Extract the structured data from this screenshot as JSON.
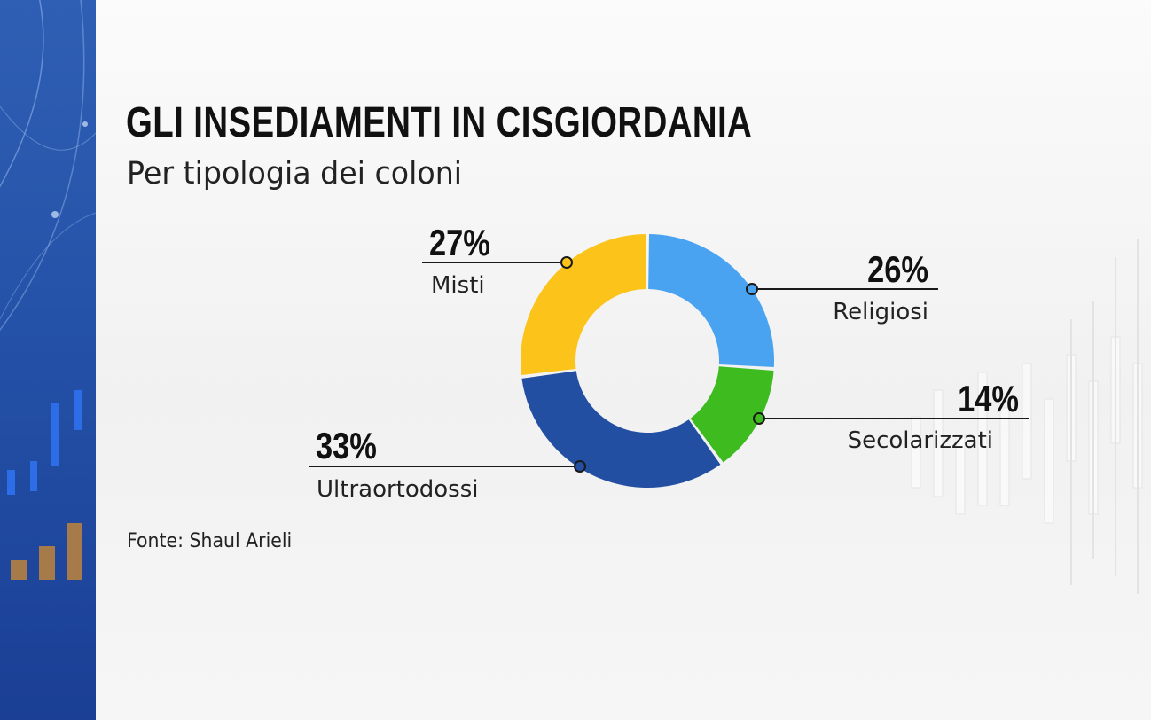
{
  "title": "GLI INSEDIAMENTI IN CISGIORDANIA",
  "subtitle": "Per tipologia dei coloni",
  "source": "Fonte: Shaul Arieli",
  "chart_data": {
    "type": "pie",
    "variant": "donut",
    "title": "GLI INSEDIAMENTI IN CISGIORDANIA",
    "subtitle": "Per tipologia dei coloni",
    "slices": [
      {
        "label": "Religiosi",
        "value": 26,
        "value_label": "26%",
        "color": "#4aa3f0"
      },
      {
        "label": "Secolarizzati",
        "value": 14,
        "value_label": "14%",
        "color": "#3dbb1f"
      },
      {
        "label": "Ultraortodossi",
        "value": 33,
        "value_label": "33%",
        "color": "#234fa2"
      },
      {
        "label": "Misti",
        "value": 27,
        "value_label": "27%",
        "color": "#fcc41a"
      }
    ],
    "start": "top, clockwise"
  }
}
